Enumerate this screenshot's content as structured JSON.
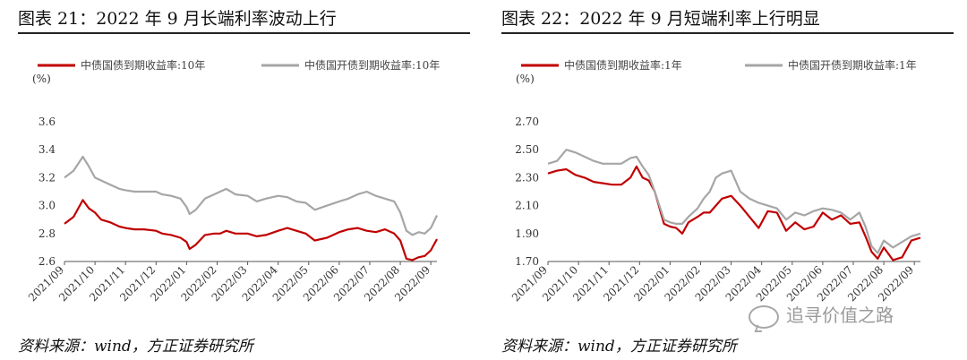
{
  "watermark": "追寻价值之路",
  "chart_data": [
    {
      "type": "line",
      "title": "图表 21：2022 年 9 月长端利率波动上行",
      "source": "资料来源：wind，方正证券研究所",
      "ylabel": "(%)",
      "ylim": [
        2.6,
        3.6
      ],
      "yticks": [
        "2.6",
        "2.8",
        "3.0",
        "3.2",
        "3.4",
        "3.6"
      ],
      "xlim": [
        0,
        12.2
      ],
      "xticks": [
        "2021/09",
        "2021/10",
        "2021/11",
        "2021/12",
        "2022/01",
        "2022/02",
        "2022/03",
        "2022/04",
        "2022/05",
        "2022/06",
        "2022/07",
        "2022/08",
        "2022/09"
      ],
      "grid": false,
      "legend_position": "top",
      "series": [
        {
          "name": "中债国债到期收益率:10年",
          "color": "#c00000",
          "x": [
            0,
            0.3,
            0.6,
            0.8,
            1.0,
            1.2,
            1.5,
            1.8,
            2.0,
            2.3,
            2.6,
            3.0,
            3.2,
            3.5,
            3.8,
            4.0,
            4.1,
            4.3,
            4.6,
            4.9,
            5.1,
            5.3,
            5.6,
            6.0,
            6.3,
            6.6,
            7.0,
            7.3,
            7.6,
            7.9,
            8.2,
            8.6,
            9.0,
            9.3,
            9.6,
            9.9,
            10.2,
            10.5,
            10.8,
            11.0,
            11.2,
            11.4,
            11.6,
            11.8,
            12.0,
            12.2
          ],
          "values": [
            2.87,
            2.92,
            3.04,
            2.98,
            2.95,
            2.9,
            2.88,
            2.85,
            2.84,
            2.83,
            2.83,
            2.82,
            2.8,
            2.79,
            2.77,
            2.74,
            2.69,
            2.72,
            2.79,
            2.8,
            2.8,
            2.82,
            2.8,
            2.8,
            2.78,
            2.79,
            2.82,
            2.84,
            2.82,
            2.8,
            2.75,
            2.77,
            2.81,
            2.83,
            2.84,
            2.82,
            2.81,
            2.83,
            2.8,
            2.75,
            2.62,
            2.61,
            2.63,
            2.64,
            2.68,
            2.76
          ]
        },
        {
          "name": "中债国开债到期收益率:10年",
          "color": "#a6a6a6",
          "x": [
            0,
            0.3,
            0.6,
            0.8,
            1.0,
            1.2,
            1.5,
            1.8,
            2.0,
            2.3,
            2.6,
            3.0,
            3.2,
            3.5,
            3.8,
            4.0,
            4.1,
            4.3,
            4.6,
            4.9,
            5.1,
            5.3,
            5.6,
            6.0,
            6.3,
            6.6,
            7.0,
            7.3,
            7.6,
            7.9,
            8.2,
            8.6,
            9.0,
            9.3,
            9.6,
            9.9,
            10.2,
            10.5,
            10.8,
            11.0,
            11.2,
            11.4,
            11.6,
            11.8,
            12.0,
            12.2
          ],
          "values": [
            3.2,
            3.25,
            3.35,
            3.28,
            3.2,
            3.18,
            3.15,
            3.12,
            3.11,
            3.1,
            3.1,
            3.1,
            3.08,
            3.07,
            3.05,
            2.99,
            2.94,
            2.97,
            3.05,
            3.08,
            3.1,
            3.12,
            3.08,
            3.07,
            3.03,
            3.05,
            3.07,
            3.06,
            3.03,
            3.02,
            2.97,
            3.0,
            3.03,
            3.05,
            3.08,
            3.1,
            3.07,
            3.05,
            3.03,
            2.95,
            2.82,
            2.79,
            2.81,
            2.8,
            2.84,
            2.93
          ]
        }
      ]
    },
    {
      "type": "line",
      "title": "图表 22：2022 年 9 月短端利率上行明显",
      "source": "资料来源：wind，方正证券研究所",
      "ylabel": "(%)",
      "ylim": [
        1.7,
        2.7
      ],
      "yticks": [
        "1.70",
        "1.90",
        "2.10",
        "2.30",
        "2.50",
        "2.70"
      ],
      "xlim": [
        0,
        12.2
      ],
      "xticks": [
        "2021/09",
        "2021/10",
        "2021/11",
        "2021/12",
        "2022/01",
        "2022/02",
        "2022/03",
        "2022/04",
        "2022/05",
        "2022/06",
        "2022/07",
        "2022/08",
        "2022/09"
      ],
      "grid": false,
      "legend_position": "top",
      "series": [
        {
          "name": "中债国债到期收益率:1年",
          "color": "#c00000",
          "x": [
            0,
            0.3,
            0.6,
            0.9,
            1.2,
            1.5,
            1.8,
            2.1,
            2.4,
            2.7,
            2.9,
            3.1,
            3.3,
            3.5,
            3.8,
            4.0,
            4.2,
            4.4,
            4.6,
            4.9,
            5.1,
            5.3,
            5.5,
            5.7,
            6.0,
            6.3,
            6.6,
            6.9,
            7.2,
            7.5,
            7.8,
            8.1,
            8.4,
            8.7,
            9.0,
            9.3,
            9.6,
            9.9,
            10.2,
            10.4,
            10.6,
            10.8,
            11.0,
            11.3,
            11.6,
            11.9,
            12.2
          ],
          "values": [
            2.33,
            2.35,
            2.36,
            2.32,
            2.3,
            2.27,
            2.26,
            2.25,
            2.25,
            2.3,
            2.38,
            2.3,
            2.28,
            2.2,
            1.97,
            1.95,
            1.94,
            1.9,
            1.98,
            2.02,
            2.05,
            2.05,
            2.1,
            2.15,
            2.17,
            2.1,
            2.02,
            1.94,
            2.06,
            2.05,
            1.92,
            1.98,
            1.93,
            1.95,
            2.05,
            2.0,
            2.03,
            1.97,
            1.98,
            1.88,
            1.77,
            1.72,
            1.8,
            1.71,
            1.73,
            1.85,
            1.87
          ]
        },
        {
          "name": "中债国开债到期收益率:1年",
          "color": "#a6a6a6",
          "x": [
            0,
            0.3,
            0.6,
            0.9,
            1.2,
            1.5,
            1.8,
            2.1,
            2.4,
            2.7,
            2.9,
            3.1,
            3.3,
            3.5,
            3.8,
            4.0,
            4.2,
            4.4,
            4.6,
            4.9,
            5.1,
            5.3,
            5.5,
            5.7,
            6.0,
            6.3,
            6.6,
            6.9,
            7.2,
            7.5,
            7.8,
            8.1,
            8.4,
            8.7,
            9.0,
            9.3,
            9.6,
            9.9,
            10.2,
            10.4,
            10.6,
            10.8,
            11.0,
            11.3,
            11.6,
            11.9,
            12.2
          ],
          "values": [
            2.4,
            2.42,
            2.5,
            2.48,
            2.45,
            2.42,
            2.4,
            2.4,
            2.4,
            2.44,
            2.45,
            2.38,
            2.32,
            2.2,
            2.0,
            1.98,
            1.97,
            1.97,
            2.02,
            2.08,
            2.15,
            2.2,
            2.3,
            2.33,
            2.35,
            2.2,
            2.15,
            2.12,
            2.1,
            2.08,
            2.0,
            2.05,
            2.03,
            2.06,
            2.08,
            2.07,
            2.05,
            2.0,
            2.05,
            1.95,
            1.81,
            1.76,
            1.85,
            1.8,
            1.84,
            1.88,
            1.9
          ]
        }
      ]
    }
  ]
}
